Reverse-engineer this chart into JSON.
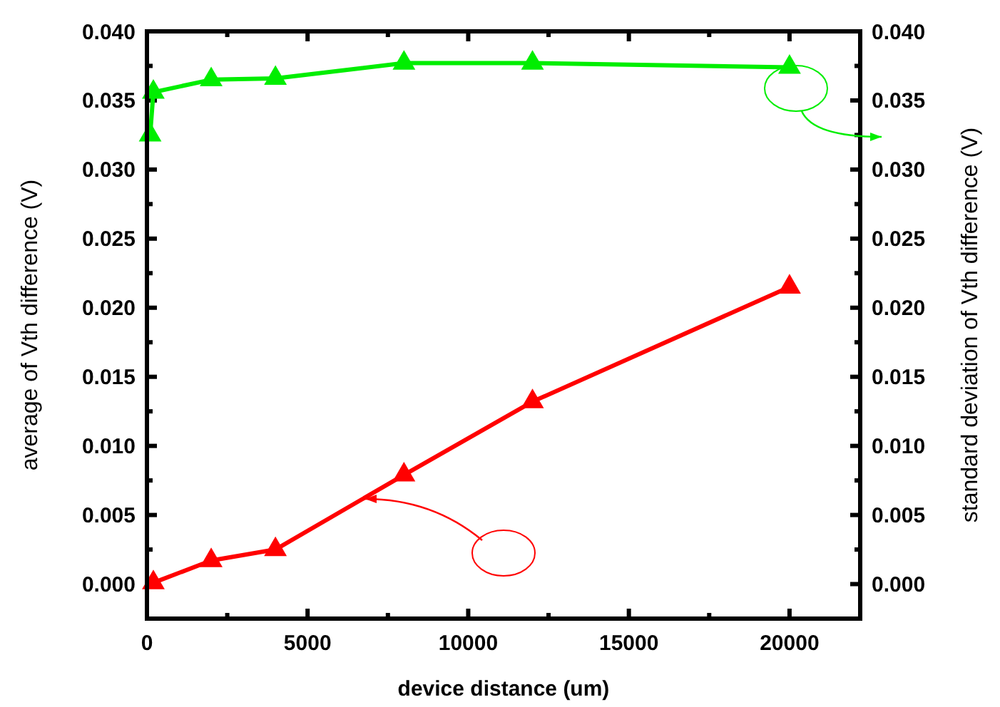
{
  "chart_data": {
    "type": "line",
    "xlabel": "device distance (um)",
    "ylabel": "average of Vth difference (V)",
    "y2label": "standard deviation of Vth difference (V)",
    "xlim": [
      0,
      22200
    ],
    "xticks": [
      0,
      5000,
      10000,
      15000,
      20000
    ],
    "ylim": [
      -0.0025,
      0.04
    ],
    "yticks": [
      {
        "value": 0,
        "label": "0.000"
      },
      {
        "value": 0.005,
        "label": "0.005"
      },
      {
        "value": 0.01,
        "label": "0.010"
      },
      {
        "value": 0.015,
        "label": "0.015"
      },
      {
        "value": 0.02,
        "label": "0.020"
      },
      {
        "value": 0.025,
        "label": "0.025"
      },
      {
        "value": 0.03,
        "label": "0.030"
      },
      {
        "value": 0.035,
        "label": "0.035"
      },
      {
        "value": 0.04,
        "label": "0.040"
      }
    ],
    "y2lim": [
      -0.0025,
      0.04
    ],
    "y2ticks": [
      {
        "value": 0,
        "label": "0.000"
      },
      {
        "value": 0.005,
        "label": "0.005"
      },
      {
        "value": 0.01,
        "label": "0.010"
      },
      {
        "value": 0.015,
        "label": "0.015"
      },
      {
        "value": 0.02,
        "label": "0.020"
      },
      {
        "value": 0.025,
        "label": "0.025"
      },
      {
        "value": 0.03,
        "label": "0.030"
      },
      {
        "value": 0.035,
        "label": "0.035"
      },
      {
        "value": 0.04,
        "label": "0.040"
      }
    ],
    "marker": "triangle",
    "grid": false,
    "series": [
      {
        "color": "#ff0000",
        "x": [
          200,
          2000,
          4000,
          8000,
          12000,
          20000
        ],
        "values": [
          0.0001,
          0.0017,
          0.0025,
          0.0079,
          0.0132,
          0.0215
        ]
      },
      {
        "color": "#00ee00",
        "axis": "y2",
        "x": [
          100,
          200,
          2000,
          4000,
          8000,
          12000,
          20000
        ],
        "values": [
          0.0325,
          0.0356,
          0.0365,
          0.0366,
          0.0377,
          0.0377,
          0.0374
        ]
      }
    ]
  }
}
